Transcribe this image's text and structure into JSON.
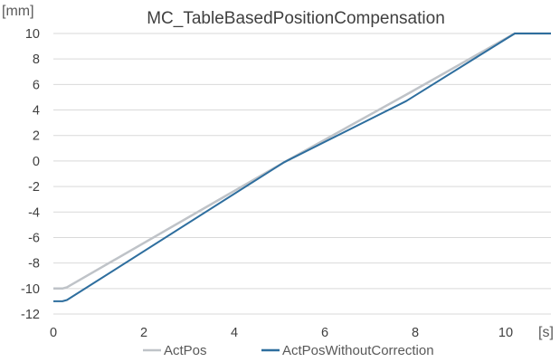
{
  "chart_data": {
    "type": "line",
    "title": "MC_TableBasedPositionCompensation",
    "xlabel": "[s]",
    "ylabel": "[mm]",
    "xlim": [
      0,
      11
    ],
    "ylim": [
      -12,
      10
    ],
    "xticks": [
      0,
      2,
      4,
      6,
      8,
      10
    ],
    "yticks": [
      10,
      8,
      6,
      4,
      2,
      0,
      -2,
      -4,
      -6,
      -8,
      -10,
      -12
    ],
    "grid": true,
    "legend": "bottom",
    "series": [
      {
        "name": "ActPos",
        "color": "#bfc3c8",
        "x": [
          0,
          0.2,
          0.3,
          5.1,
          7.8,
          10.2,
          11
        ],
        "y": [
          -10,
          -10,
          -9.9,
          -0.1,
          5.2,
          10,
          10
        ]
      },
      {
        "name": "ActPosWithoutCorrection",
        "color": "#2e6e9e",
        "x": [
          0,
          0.2,
          0.3,
          5.1,
          7.8,
          10.2,
          11
        ],
        "y": [
          -11,
          -11,
          -10.9,
          -0.1,
          4.7,
          10,
          10
        ]
      }
    ]
  }
}
